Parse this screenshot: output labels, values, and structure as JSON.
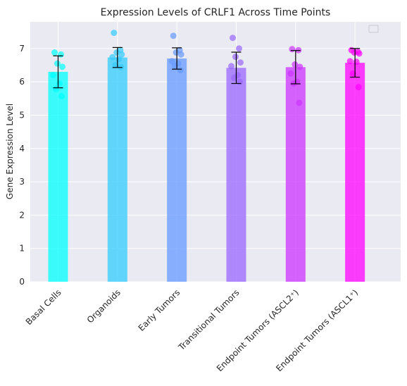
{
  "chart_data": {
    "type": "bar",
    "title": "Expression Levels of CRLF1 Across Time Points",
    "xlabel": "",
    "ylabel": "Gene Expression Level",
    "ylim": [
      0,
      7.8
    ],
    "yticks": [
      0,
      1,
      2,
      3,
      4,
      5,
      6,
      7
    ],
    "grid": true,
    "legend": "top-right (empty)",
    "categories": [
      "Basal Cells",
      "Organoids",
      "Early Tumors",
      "Transitional Tumors",
      "Endpoint Tumors (ASCL2⁺)",
      "Endpoint Tumors (ASCL1⁺)"
    ],
    "values": [
      6.3,
      6.73,
      6.7,
      6.42,
      6.44,
      6.57
    ],
    "error": [
      0.48,
      0.3,
      0.32,
      0.47,
      0.5,
      0.43
    ],
    "colors": [
      "#00ffff",
      "#33ccff",
      "#6699ff",
      "#9966ff",
      "#cc33ff",
      "#ff00ff"
    ],
    "points": [
      [
        6.88,
        6.82,
        6.55,
        6.45,
        6.2,
        5.95,
        5.78,
        5.57
      ],
      [
        7.47,
        6.95,
        6.88,
        6.82,
        6.74,
        6.68,
        6.5,
        6.44
      ],
      [
        7.38,
        6.95,
        6.88,
        6.82,
        6.62,
        6.55,
        6.48,
        6.35
      ],
      [
        7.32,
        7.0,
        6.75,
        6.58,
        6.47,
        6.2,
        6.12,
        6.0
      ],
      [
        6.98,
        6.95,
        6.52,
        6.45,
        6.25,
        6.0,
        5.95,
        5.37
      ],
      [
        6.95,
        6.9,
        6.88,
        6.85,
        6.62,
        6.6,
        6.25,
        5.84
      ]
    ]
  }
}
